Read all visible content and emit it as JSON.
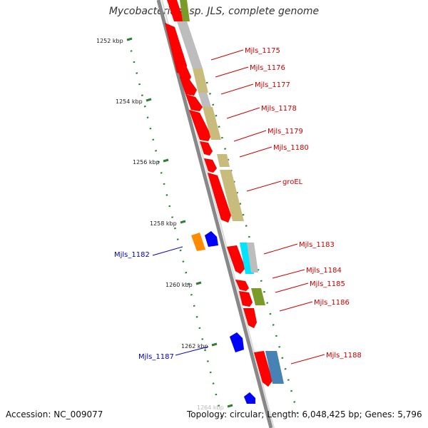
{
  "title": "Mycobacterium sp. JLS, complete genome",
  "footer": {
    "accession": "Accession: NC_009077",
    "stats": "Topology: circular; Length: 6,048,425 bp; Genes: 5,796"
  },
  "ticks": [
    {
      "label": "1252 kbp",
      "kbp": 1252
    },
    {
      "label": "1254 kbp",
      "kbp": 1254
    },
    {
      "label": "1256 kbp",
      "kbp": 1256
    },
    {
      "label": "1258 kbp",
      "kbp": 1258
    },
    {
      "label": "1260 kbp",
      "kbp": 1260
    },
    {
      "label": "1262 kbp",
      "kbp": 1262
    },
    {
      "label": "1264 kbp",
      "kbp": 1264
    }
  ],
  "gene_labels_forward": [
    "Mjls_1175",
    "Mjls_1176",
    "Mjls_1177",
    "Mjls_1178",
    "Mjls_1179",
    "Mjls_1180",
    "groEL",
    "Mjls_1183",
    "Mjls_1184",
    "Mjls_1185",
    "Mjls_1186",
    "Mjls_1188"
  ],
  "gene_labels_reverse": [
    "Mjls_1182",
    "Mjls_1187"
  ],
  "colors": {
    "cds": "#ff0000",
    "label_forward": "#cc0000",
    "label_reverse": "#0000cc",
    "backbone": "#888888",
    "tick": "#2e7d32",
    "cog_khaki": "#c8bc7c",
    "cog_gray": "#bdbdbd",
    "cog_olive": "#7a9a2a",
    "cog_cyan": "#00e5ff",
    "cog_steelblue": "#4682b4",
    "gene_orange": "#ff8c00",
    "gene_blue": "#0000ff"
  }
}
